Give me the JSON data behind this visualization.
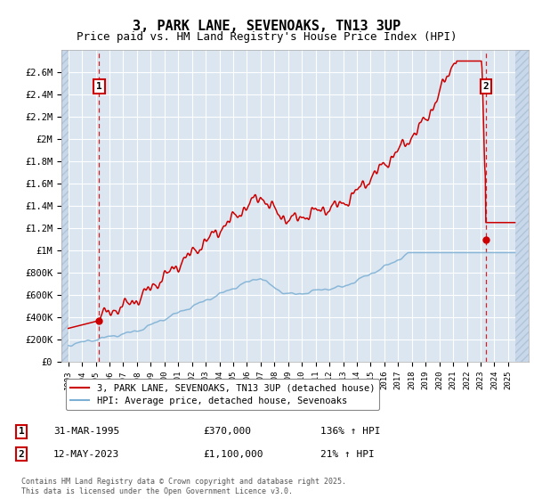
{
  "title": "3, PARK LANE, SEVENOAKS, TN13 3UP",
  "subtitle": "Price paid vs. HM Land Registry's House Price Index (HPI)",
  "ylim": [
    0,
    2800000
  ],
  "yticks": [
    0,
    200000,
    400000,
    600000,
    800000,
    1000000,
    1200000,
    1400000,
    1600000,
    1800000,
    2000000,
    2200000,
    2400000,
    2600000
  ],
  "ytick_labels": [
    "£0",
    "£200K",
    "£400K",
    "£600K",
    "£800K",
    "£1M",
    "£1.2M",
    "£1.4M",
    "£1.6M",
    "£1.8M",
    "£2M",
    "£2.2M",
    "£2.4M",
    "£2.6M"
  ],
  "xlim_start": 1992.5,
  "xlim_end": 2026.5,
  "data_x_start": 1993.0,
  "data_x_end": 2025.5,
  "background_color": "#dce6f1",
  "hatch_color": "#c8d8ea",
  "grid_color": "#ffffff",
  "point1_x": 1995.25,
  "point1_y": 370000,
  "point2_x": 2023.37,
  "point2_y": 1100000,
  "legend_line1": "3, PARK LANE, SEVENOAKS, TN13 3UP (detached house)",
  "legend_line2": "HPI: Average price, detached house, Sevenoaks",
  "annotation1_label": "1",
  "annotation1_date": "31-MAR-1995",
  "annotation1_price": "£370,000",
  "annotation1_hpi": "136% ↑ HPI",
  "annotation2_label": "2",
  "annotation2_date": "12-MAY-2023",
  "annotation2_price": "£1,100,000",
  "annotation2_hpi": "21% ↑ HPI",
  "footer": "Contains HM Land Registry data © Crown copyright and database right 2025.\nThis data is licensed under the Open Government Licence v3.0.",
  "red_line_color": "#cc0000",
  "blue_line_color": "#7bafd4",
  "dashed_color": "#cc0000",
  "title_fontsize": 11,
  "subtitle_fontsize": 9
}
